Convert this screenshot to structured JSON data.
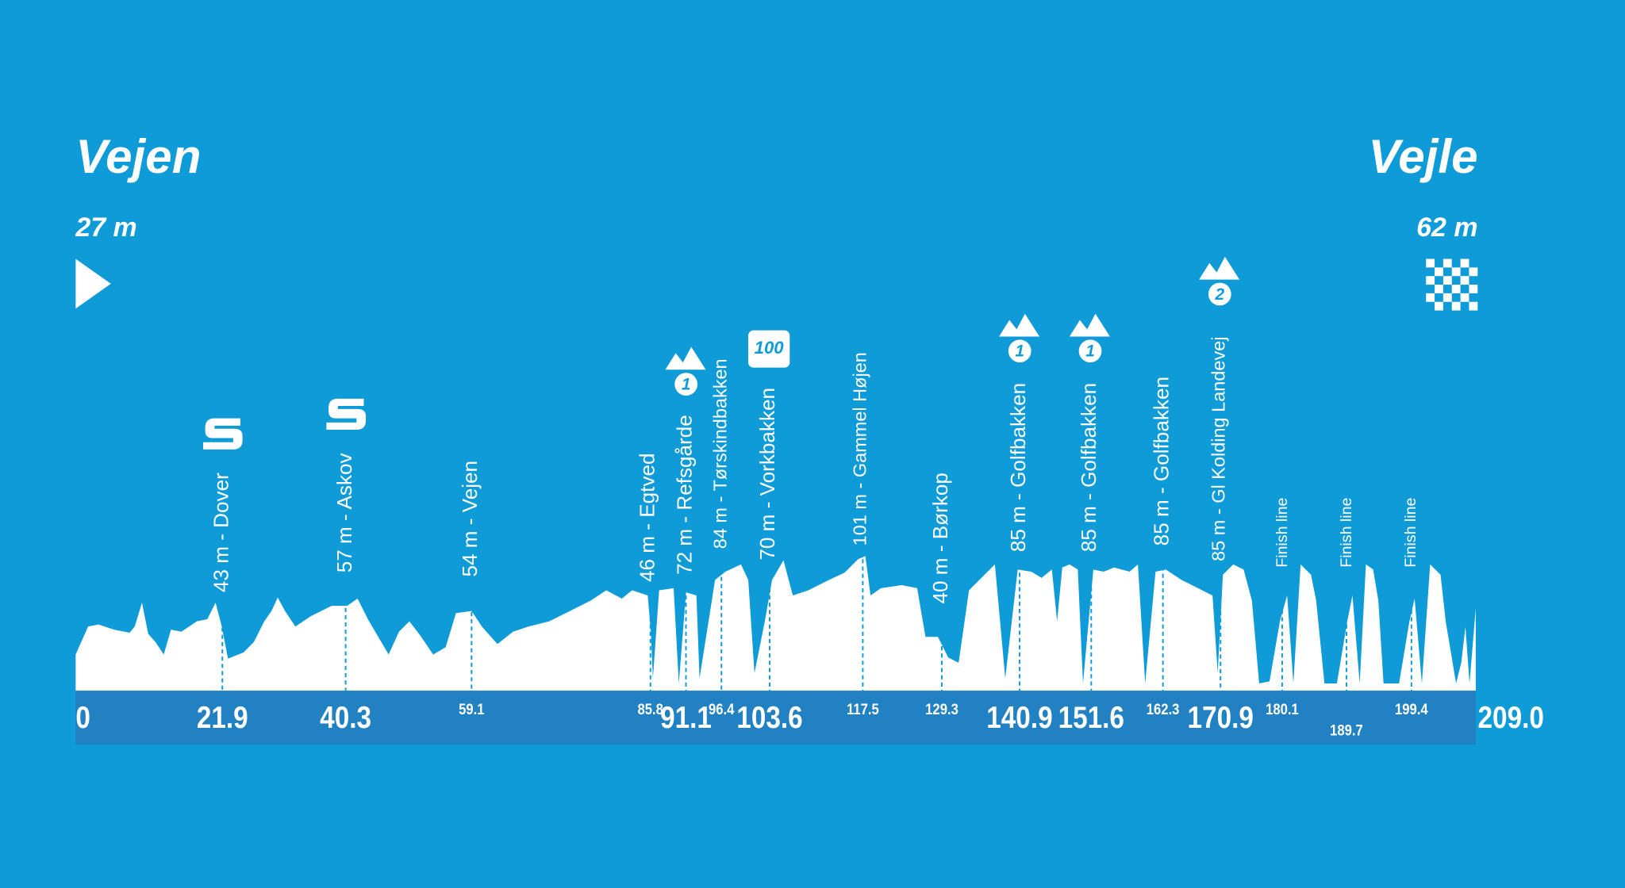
{
  "start": {
    "name": "Vejen",
    "elevation": "27 m"
  },
  "finish": {
    "name": "Vejle",
    "elevation": "62 m"
  },
  "distance_markers": [
    0,
    21.9,
    40.3,
    59.1,
    85.8,
    91.1,
    96.4,
    103.6,
    117.5,
    129.3,
    140.9,
    151.6,
    162.3,
    170.9,
    180.1,
    189.7,
    199.4,
    {
      "value": 209,
      "label": "209.0"
    }
  ],
  "points": [
    {
      "label": "43 m - Dover"
    },
    {
      "label": "57 m - Askov"
    },
    {
      "label": "54 m - Vejen"
    },
    {
      "label": "46 m - Egtved"
    },
    {
      "label": "72 m - Refsgårde",
      "category": "1"
    },
    {
      "label": "84 m - Tørskindbakken"
    },
    {
      "label": "70 m - Vorkbakken",
      "badge": "100"
    },
    {
      "label": "101 m - Gammel Højen"
    },
    {
      "label": "40 m - Børkop"
    },
    {
      "label": "85 m - Golfbakken",
      "category": "1"
    },
    {
      "label": "85 m - Golfbakken",
      "category": "1"
    },
    {
      "label": "85 m - Golfbakken"
    },
    {
      "label": "85 m - Gl Kolding Landevej",
      "category": "2"
    },
    {
      "label": "Finish line"
    },
    {
      "label": "Finish line"
    },
    {
      "label": "Finish line"
    }
  ]
}
